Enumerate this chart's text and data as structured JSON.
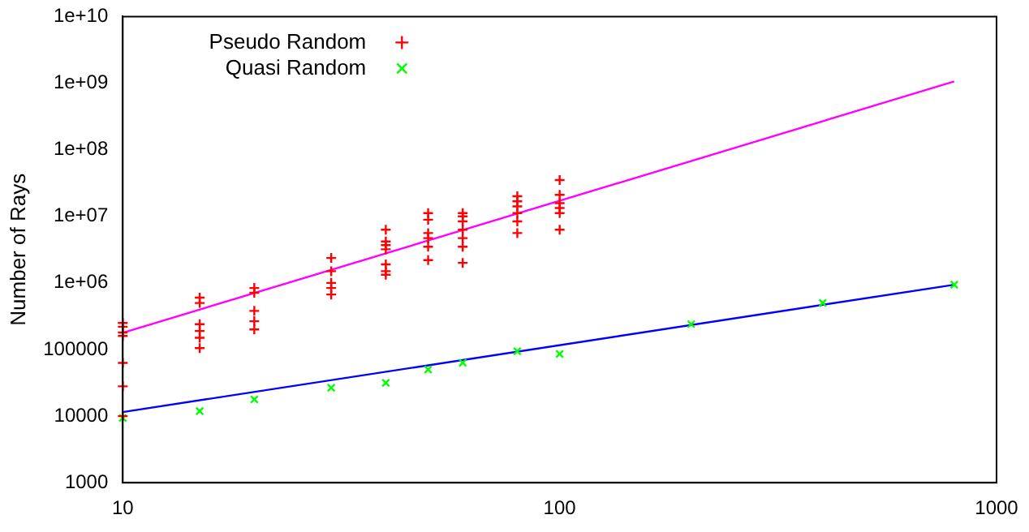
{
  "chart_data": {
    "type": "scatter",
    "ylabel": "Number of Rays",
    "log": "xy",
    "xlim": [
      10,
      1000
    ],
    "xticks": [
      10,
      100,
      1000
    ],
    "ylim": [
      1000,
      10000000000
    ],
    "yticks": [
      1000,
      10000,
      100000,
      {
        "value": 1000000,
        "label": "1e+06"
      },
      {
        "value": 10000000,
        "label": "1e+07"
      },
      {
        "value": 100000000,
        "label": "1e+08"
      },
      {
        "value": 1000000000,
        "label": "1e+09"
      },
      {
        "value": 10000000000,
        "label": "1e+10"
      }
    ],
    "grid": false,
    "legend": "top left",
    "series": [
      {
        "name": "Pseudo Random",
        "type": "scatter",
        "marker": "plus",
        "color": "#ff0000",
        "x": [
          10,
          10,
          10,
          10,
          10,
          10,
          10,
          15,
          15,
          15,
          15,
          15,
          15,
          20,
          20,
          20,
          20,
          20,
          30,
          30,
          30,
          30,
          30,
          40,
          40,
          40,
          40,
          40,
          40,
          40,
          50,
          50,
          50,
          50,
          50,
          50,
          60,
          60,
          60,
          60,
          60,
          60,
          60,
          80,
          80,
          80,
          80,
          80,
          80,
          100,
          100,
          100,
          100,
          100,
          100
        ],
        "values": [
          250000,
          220000,
          180000,
          160000,
          63000,
          28000,
          10000,
          600000,
          500000,
          240000,
          190000,
          150000,
          105000,
          840000,
          710000,
          380000,
          266000,
          200000,
          2370000,
          1500000,
          1000000,
          840000,
          670000,
          6300000,
          4200000,
          3700000,
          3200000,
          1900000,
          1500000,
          1330000,
          11200000,
          8900000,
          5600000,
          4700000,
          3500000,
          2200000,
          11200000,
          10000000,
          8400000,
          6300000,
          4700000,
          3500000,
          2000000,
          20000000,
          16800000,
          14100000,
          11200000,
          8400000,
          5600000,
          35000000,
          21000000,
          15800000,
          13300000,
          11200000,
          6300000
        ]
      },
      {
        "name": "Quasi Random",
        "type": "scatter",
        "marker": "cross",
        "color": "#00ff00",
        "x": [
          10,
          15,
          20,
          30,
          40,
          50,
          60,
          80,
          100,
          200,
          400,
          800
        ],
        "values": [
          9400,
          11900,
          17800,
          26600,
          31600,
          50000,
          63000,
          94000,
          86000,
          240000,
          500000,
          940000
        ]
      },
      {
        "type": "line",
        "marker": "none",
        "color": "#ff00ff",
        "x": [
          10,
          800
        ],
        "values": [
          178000,
          1060000000
        ]
      },
      {
        "type": "line",
        "marker": "none",
        "color": "#0000ff",
        "x": [
          10,
          800
        ],
        "values": [
          11500,
          940000
        ]
      }
    ]
  }
}
